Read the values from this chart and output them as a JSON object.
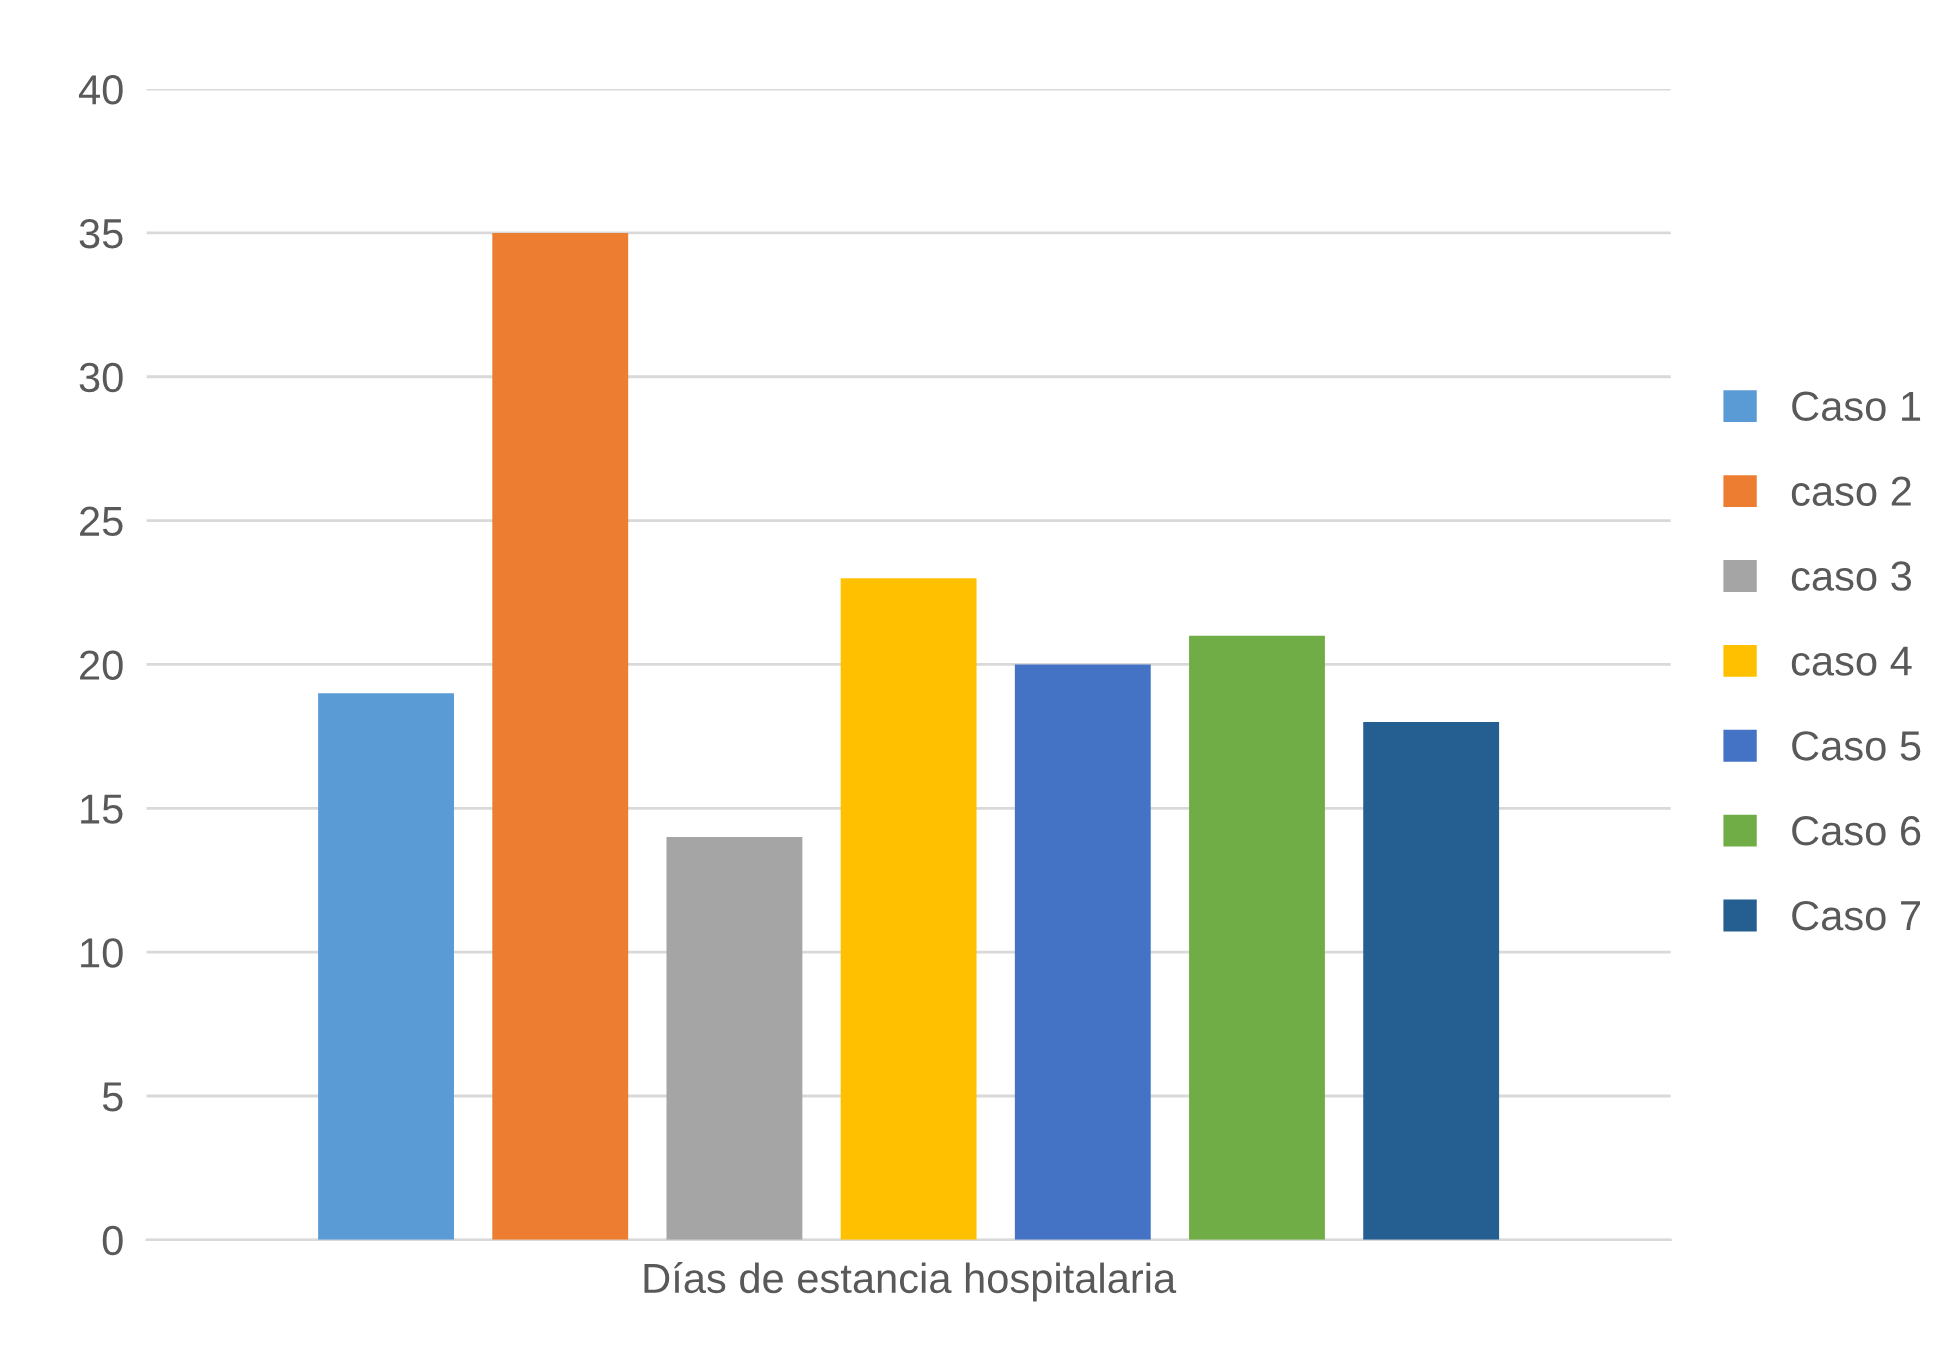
{
  "chart_data": {
    "type": "bar",
    "categories": [
      "Días de estancia hospitalaria"
    ],
    "series": [
      {
        "name": "Caso 1",
        "color": "#5b9bd5",
        "values": [
          19
        ]
      },
      {
        "name": "caso 2",
        "color": "#ed7d31",
        "values": [
          35
        ]
      },
      {
        "name": "caso 3",
        "color": "#a5a5a5",
        "values": [
          14
        ]
      },
      {
        "name": "caso 4",
        "color": "#ffc000",
        "values": [
          23
        ]
      },
      {
        "name": "Caso 5",
        "color": "#4472c4",
        "values": [
          20
        ]
      },
      {
        "name": "Caso 6",
        "color": "#70ad47",
        "values": [
          21
        ]
      },
      {
        "name": "Caso 7",
        "color": "#255e91",
        "values": [
          18
        ]
      }
    ],
    "ylim": [
      0,
      40
    ],
    "yticks": [
      0,
      5,
      10,
      15,
      20,
      25,
      30,
      35,
      40
    ],
    "grid": "y",
    "legend": "right"
  }
}
